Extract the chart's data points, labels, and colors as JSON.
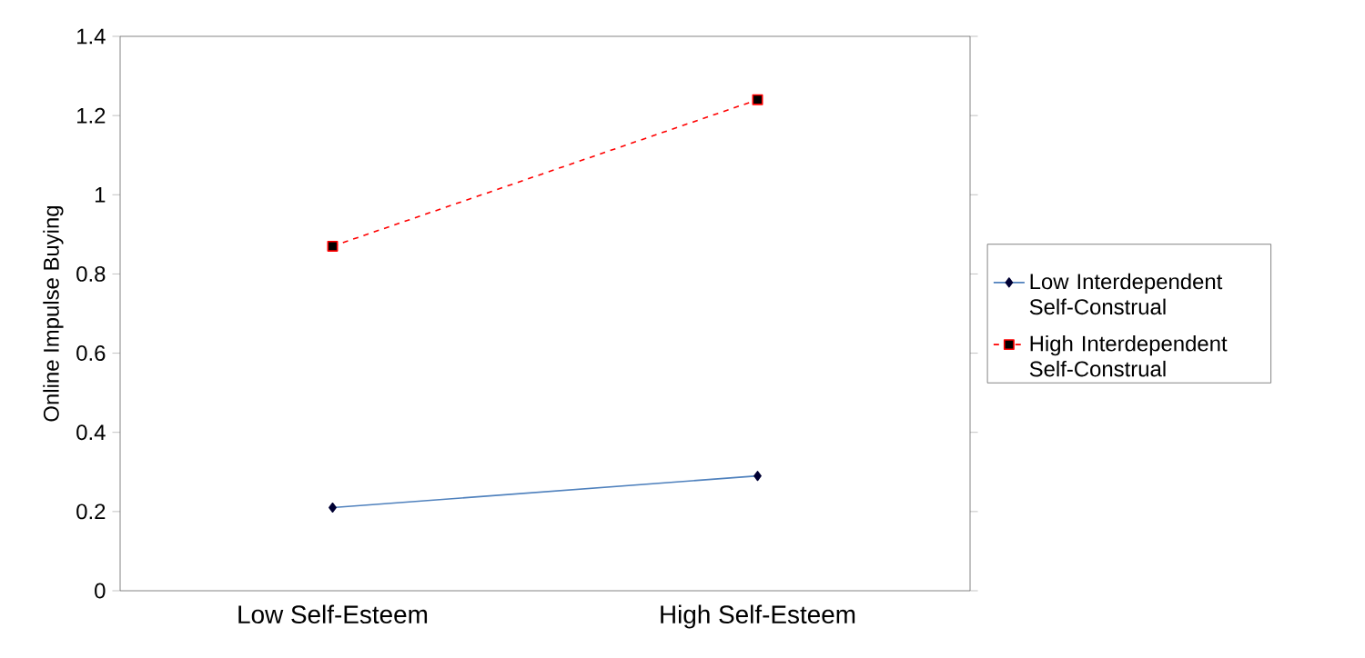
{
  "chart_data": {
    "type": "line",
    "ylabel": "Online Impulse Buying",
    "categories": [
      "Low Self-Esteem",
      "High Self-Esteem"
    ],
    "series": [
      {
        "name": "Low Interdependent Self-Construal",
        "color": "#4f81bd",
        "values": [
          0.21,
          0.29
        ],
        "marker": "diamond",
        "line_style": "solid"
      },
      {
        "name": "High Interdependent Self-Construal",
        "color": "#ff0000",
        "values": [
          0.87,
          1.24
        ],
        "marker": "square",
        "line_style": "dashed"
      }
    ],
    "ylim": [
      0,
      1.4
    ],
    "yticks": [
      0,
      0.2,
      0.4,
      0.6,
      0.8,
      1,
      1.2,
      1.4
    ],
    "grid": false,
    "legend": "right"
  }
}
